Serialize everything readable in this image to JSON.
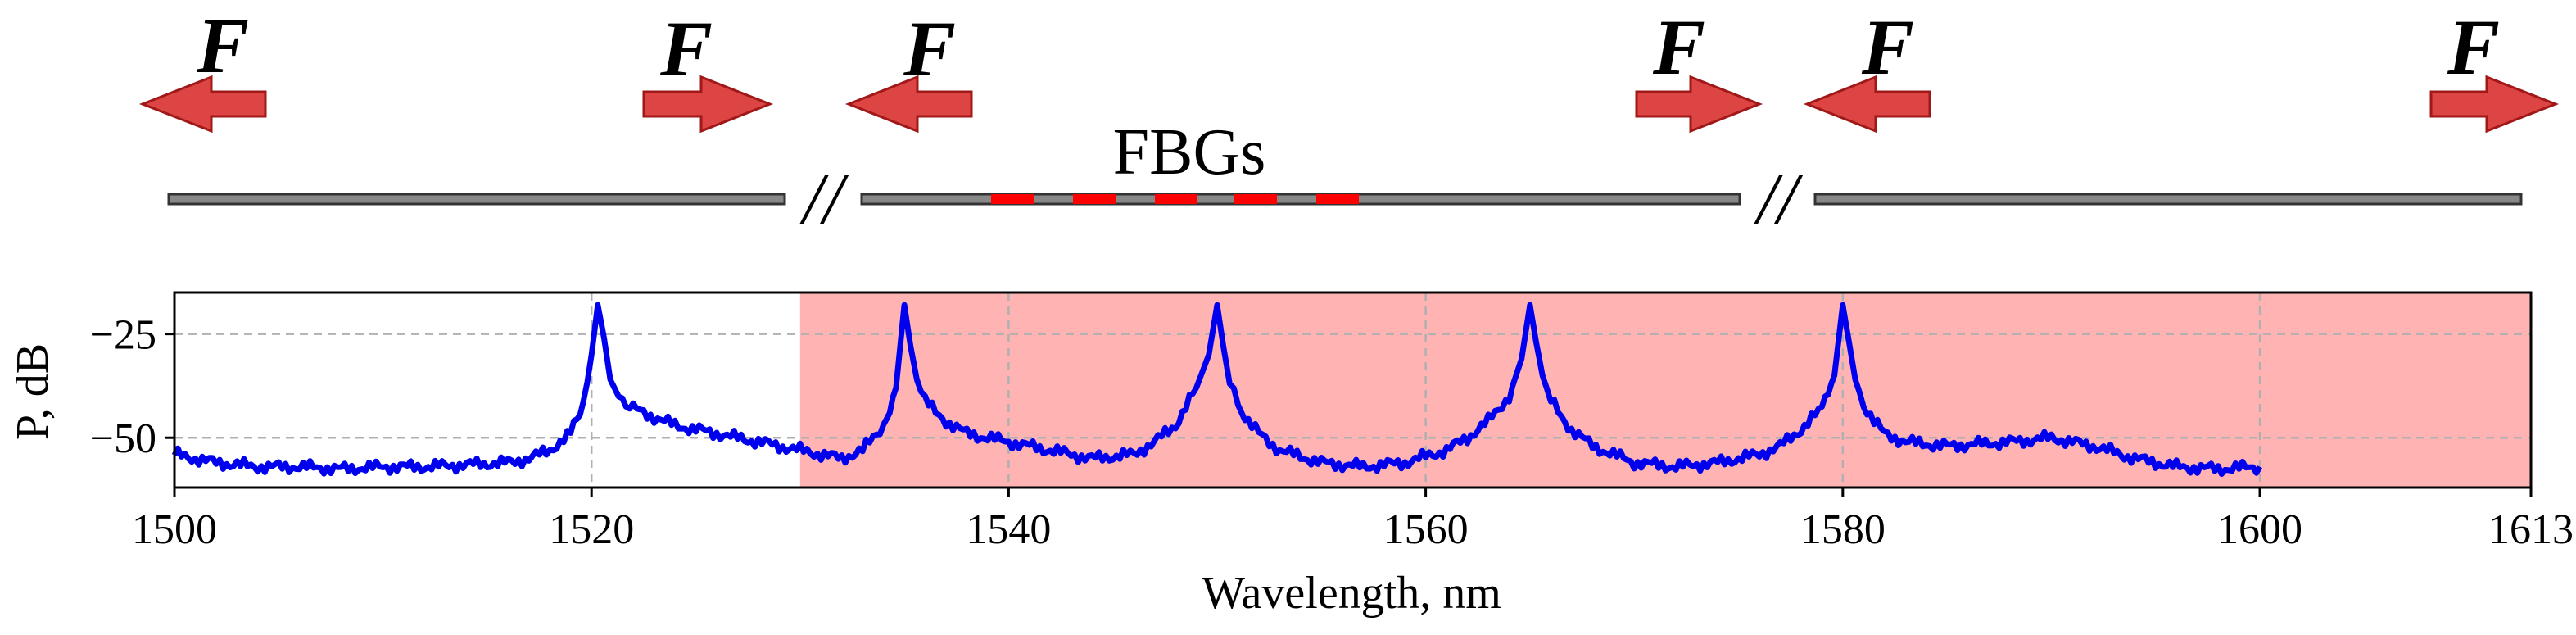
{
  "diagram": {
    "force_label": "F",
    "fbg_label": "FBGs",
    "break_mark": "//",
    "arrow_color": "#dd4444",
    "fiber_color": "#888888",
    "fbg_color": "#ff0000"
  },
  "chart_data": {
    "type": "line",
    "title": "",
    "xlabel": "Wavelength, nm",
    "ylabel": "P, dB",
    "xlim": [
      1500,
      1613
    ],
    "ylim": [
      -62,
      -15
    ],
    "grid": true,
    "xticks": [
      1500,
      1520,
      1540,
      1560,
      1580,
      1600,
      1613
    ],
    "yticks": [
      -25,
      -50
    ],
    "shaded_region": {
      "x_start": 1530,
      "x_end": 1613,
      "color": "#ffb3b3"
    },
    "series": [
      {
        "name": "spectrum",
        "color": "#0000ee",
        "x": [
          1500,
          1502,
          1504,
          1506,
          1508,
          1510,
          1512,
          1514,
          1516,
          1517,
          1518,
          1519,
          1519.6,
          1520,
          1520.3,
          1520.6,
          1520.9,
          1521.3,
          1522,
          1523,
          1524,
          1525,
          1527,
          1529,
          1530,
          1531,
          1532,
          1533,
          1534,
          1534.6,
          1535,
          1535.3,
          1535.6,
          1536,
          1536.5,
          1537,
          1538,
          1540,
          1542,
          1544,
          1546,
          1547,
          1548,
          1549,
          1549.6,
          1550,
          1550.3,
          1550.6,
          1551,
          1551.5,
          1552,
          1553,
          1555,
          1557,
          1559,
          1561,
          1562,
          1563,
          1564,
          1564.6,
          1565,
          1565.3,
          1565.6,
          1566,
          1566.5,
          1567,
          1568,
          1570,
          1572,
          1574,
          1576,
          1577,
          1578,
          1579,
          1579.6,
          1580,
          1580.3,
          1580.6,
          1581,
          1581.5,
          1582,
          1583,
          1585,
          1588,
          1590,
          1592,
          1594,
          1596,
          1598,
          1600
        ],
        "values": [
          -54,
          -56,
          -57,
          -57,
          -57.5,
          -57,
          -57,
          -56.5,
          -56,
          -55,
          -53,
          -49,
          -43,
          -30,
          -18,
          -26,
          -36,
          -40,
          -43,
          -45,
          -47,
          -48,
          -50,
          -52,
          -53,
          -54,
          -55,
          -53,
          -47,
          -38,
          -18,
          -28,
          -36,
          -41,
          -44,
          -46,
          -49,
          -51,
          -53,
          -55,
          -54,
          -51,
          -47,
          -38,
          -30,
          -18,
          -28,
          -37,
          -42,
          -46,
          -49,
          -53,
          -56,
          -57,
          -56,
          -53,
          -50,
          -46,
          -40,
          -31,
          -18,
          -27,
          -35,
          -41,
          -45,
          -48,
          -52,
          -56,
          -57,
          -56,
          -54,
          -52,
          -48,
          -43,
          -35,
          -18,
          -27,
          -36,
          -42,
          -46,
          -49,
          -51,
          -52,
          -51,
          -50,
          -52,
          -55,
          -57,
          -57.5,
          -57
        ]
      }
    ]
  }
}
